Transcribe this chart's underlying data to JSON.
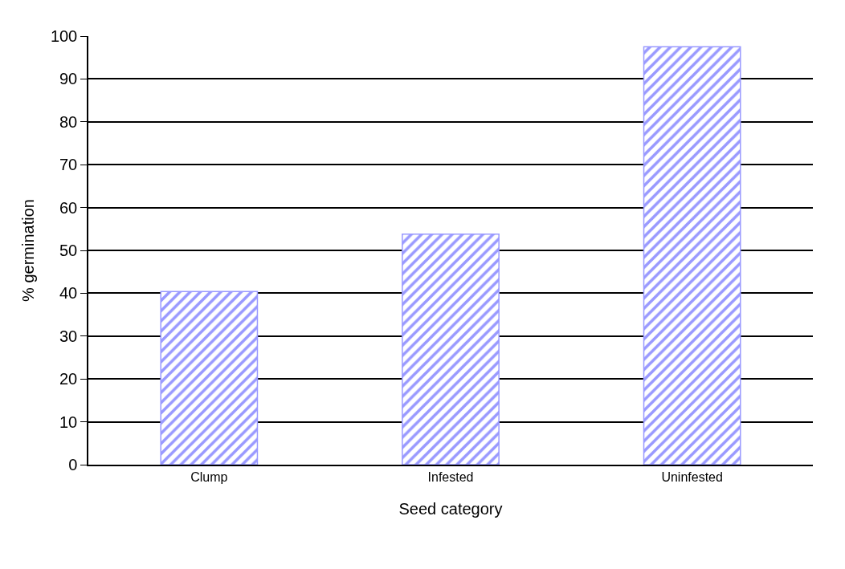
{
  "chart_data": {
    "type": "bar",
    "xlabel": "Seed category",
    "ylabel": "% germination",
    "categories": [
      "Clump",
      "Infested",
      "Uninfested"
    ],
    "values": [
      40.4,
      53.8,
      97.5
    ],
    "color": "#9999ff",
    "ylim": [
      0,
      100
    ],
    "yticks": [
      0,
      10,
      20,
      30,
      40,
      50,
      60,
      70,
      80,
      90,
      100
    ],
    "grid": "y",
    "legend": false
  }
}
